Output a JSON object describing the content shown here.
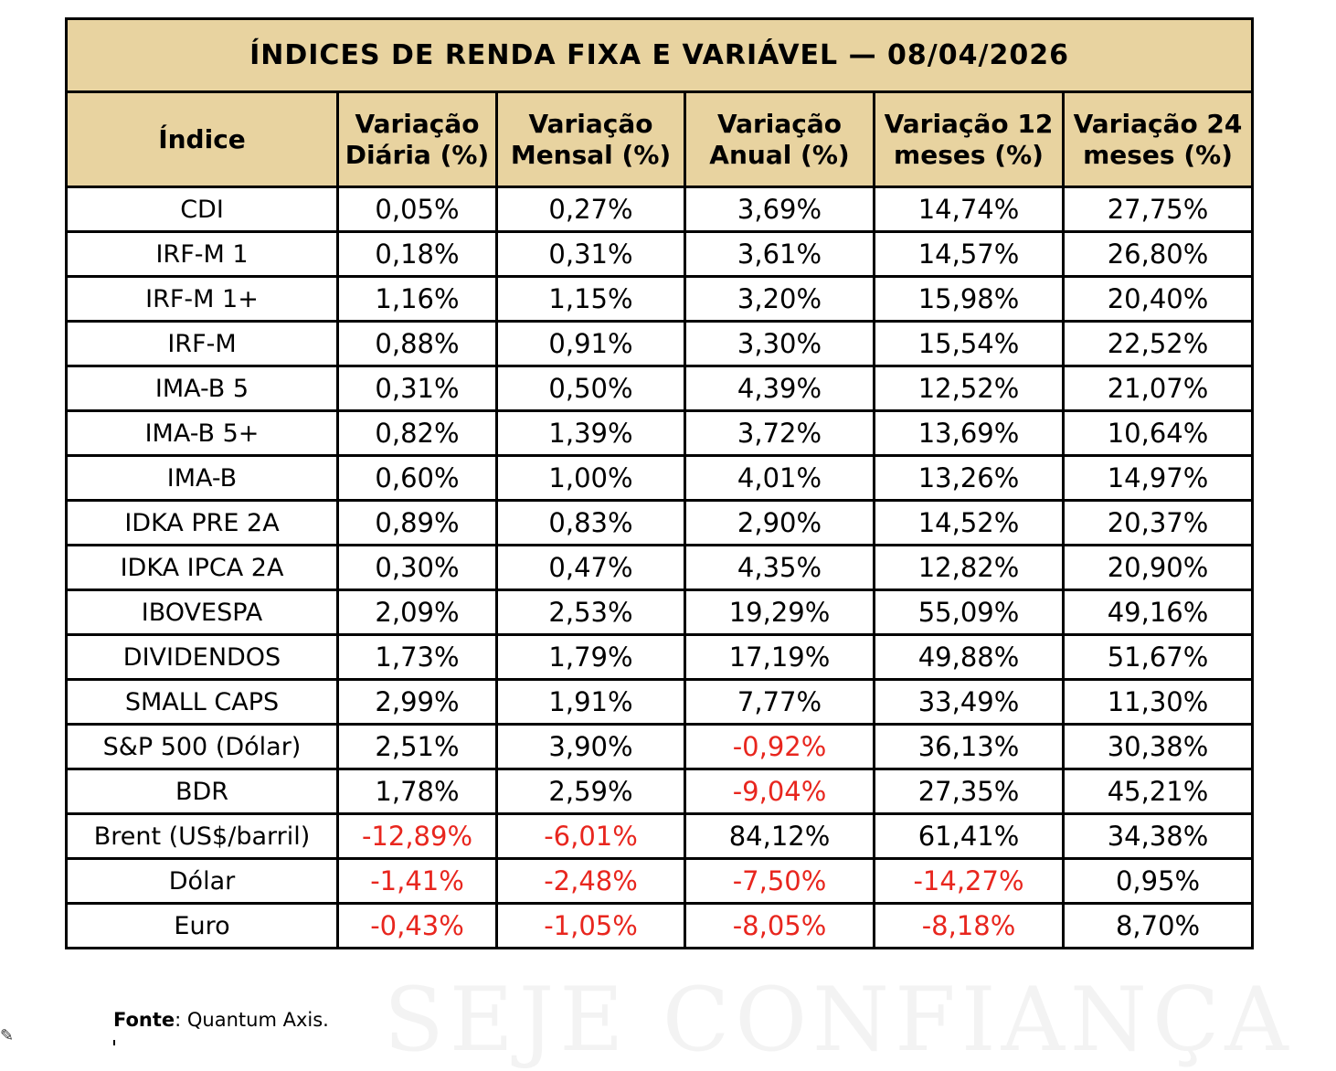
{
  "title": "ÍNDICES DE RENDA FIXA E VARIÁVEL — 08/04/2026",
  "columns": [
    "Índice",
    "Variação Diária (%)",
    "Variação Mensal (%)",
    "Variação Anual (%)",
    "Variação 12 meses (%)",
    "Variação 24 meses (%)"
  ],
  "rows": [
    [
      "CDI",
      "0,05%",
      "0,27%",
      "3,69%",
      "14,74%",
      "27,75%"
    ],
    [
      "IRF-M 1",
      "0,18%",
      "0,31%",
      "3,61%",
      "14,57%",
      "26,80%"
    ],
    [
      "IRF-M 1+",
      "1,16%",
      "1,15%",
      "3,20%",
      "15,98%",
      "20,40%"
    ],
    [
      "IRF-M",
      "0,88%",
      "0,91%",
      "3,30%",
      "15,54%",
      "22,52%"
    ],
    [
      "IMA-B 5",
      "0,31%",
      "0,50%",
      "4,39%",
      "12,52%",
      "21,07%"
    ],
    [
      "IMA-B 5+",
      "0,82%",
      "1,39%",
      "3,72%",
      "13,69%",
      "10,64%"
    ],
    [
      "IMA-B",
      "0,60%",
      "1,00%",
      "4,01%",
      "13,26%",
      "14,97%"
    ],
    [
      "IDKA PRE 2A",
      "0,89%",
      "0,83%",
      "2,90%",
      "14,52%",
      "20,37%"
    ],
    [
      "IDKA IPCA 2A",
      "0,30%",
      "0,47%",
      "4,35%",
      "12,82%",
      "20,90%"
    ],
    [
      "IBOVESPA",
      "2,09%",
      "2,53%",
      "19,29%",
      "55,09%",
      "49,16%"
    ],
    [
      "DIVIDENDOS",
      "1,73%",
      "1,79%",
      "17,19%",
      "49,88%",
      "51,67%"
    ],
    [
      "SMALL CAPS",
      "2,99%",
      "1,91%",
      "7,77%",
      "33,49%",
      "11,30%"
    ],
    [
      "S&P 500 (Dólar)",
      "2,51%",
      "3,90%",
      "-0,92%",
      "36,13%",
      "30,38%"
    ],
    [
      "BDR",
      "1,78%",
      "2,59%",
      "-9,04%",
      "27,35%",
      "45,21%"
    ],
    [
      "Brent (US$/barril)",
      "-12,89%",
      "-6,01%",
      "84,12%",
      "61,41%",
      "34,38%"
    ],
    [
      "Dólar",
      "-1,41%",
      "-2,48%",
      "-7,50%",
      "-14,27%",
      "0,95%"
    ],
    [
      "Euro",
      "-0,43%",
      "-1,05%",
      "-8,05%",
      "-8,18%",
      "8,70%"
    ]
  ],
  "colors": {
    "header_bg": "#e8d3a0",
    "negative": "#e8261e",
    "border": "#000000"
  },
  "source": {
    "label": "Fonte",
    "text": ": Quantum Axis."
  },
  "watermark": "SEJE CONFIANÇA"
}
